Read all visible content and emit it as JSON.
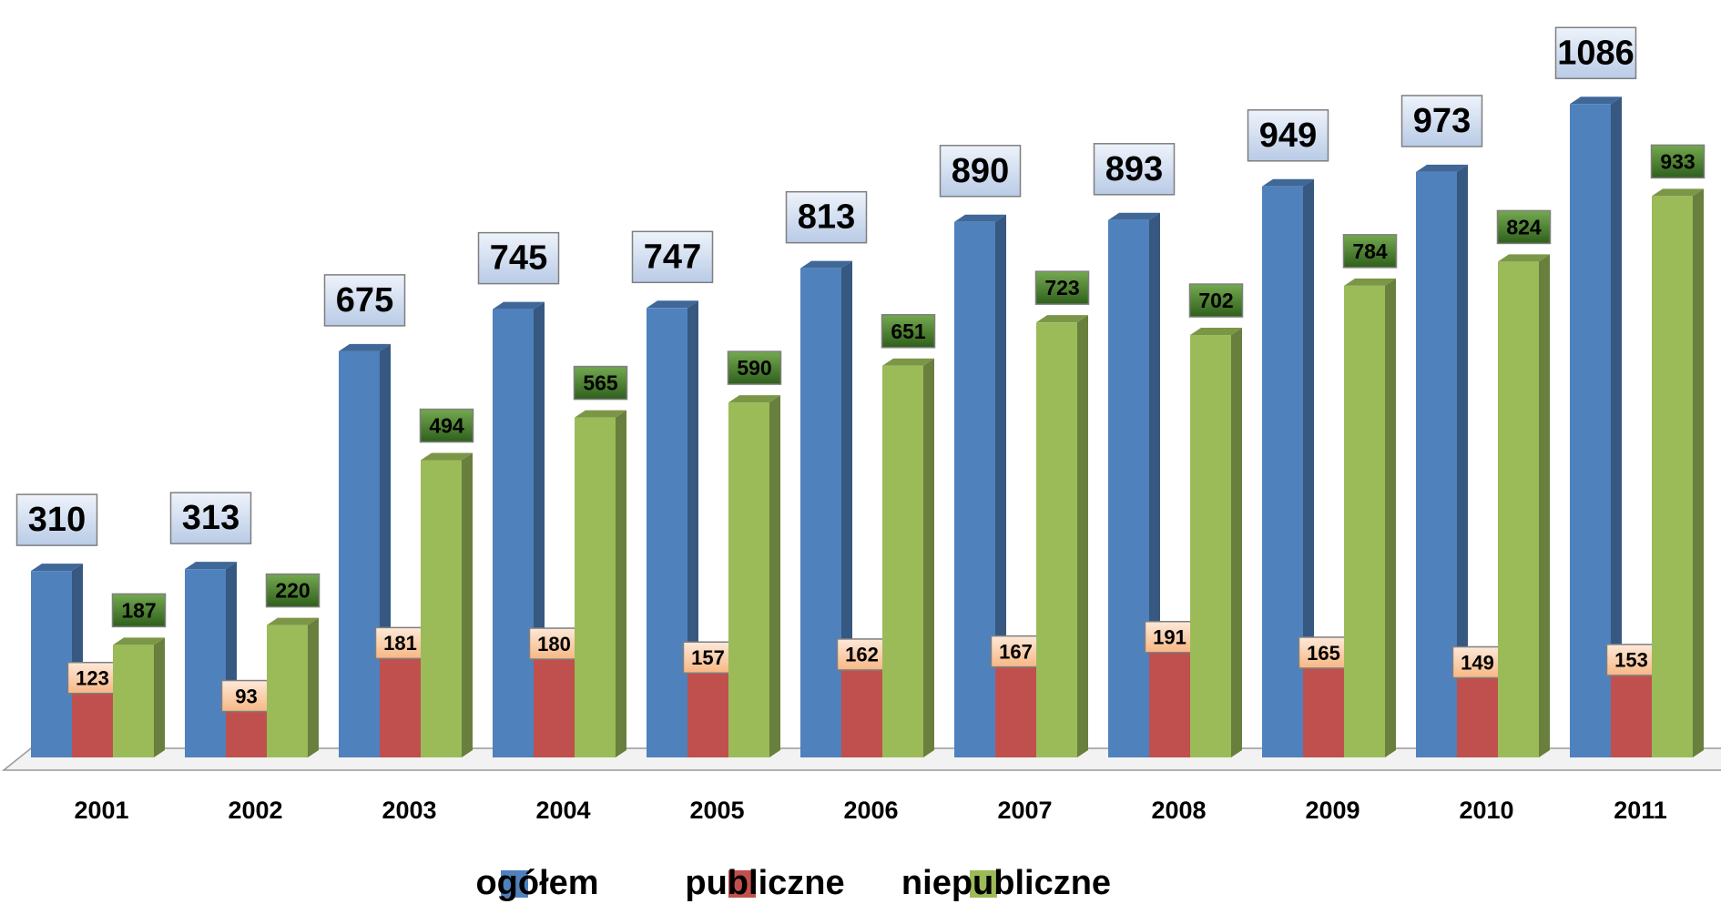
{
  "chart_data": {
    "type": "bar3d",
    "categories": [
      "2001",
      "2002",
      "2003",
      "2004",
      "2005",
      "2006",
      "2007",
      "2008",
      "2009",
      "2010",
      "2011"
    ],
    "series": [
      {
        "name": "ogółem",
        "color": "#4f81bd",
        "values": [
          310,
          313,
          675,
          745,
          747,
          813,
          890,
          893,
          949,
          973,
          1086
        ]
      },
      {
        "name": "publiczne",
        "color": "#c0504d",
        "values": [
          123,
          93,
          181,
          180,
          157,
          162,
          167,
          191,
          165,
          149,
          153
        ]
      },
      {
        "name": "niepubliczne",
        "color": "#9bbb59",
        "values": [
          187,
          220,
          494,
          565,
          590,
          651,
          723,
          702,
          784,
          824,
          933
        ]
      }
    ],
    "ylim": [
      0,
      1100
    ],
    "legend": "bottom"
  }
}
